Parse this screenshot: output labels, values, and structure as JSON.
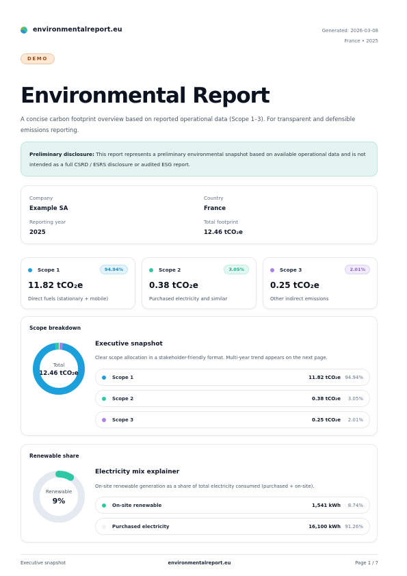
{
  "header": {
    "brand": "environmentalreport.eu",
    "generated": "Generated: 2026-03-08",
    "location_year": "France • 2025"
  },
  "badge": "DEMO",
  "title": "Environmental Report",
  "subtitle": "A concise carbon footprint overview based on reported operational data (Scope 1–3). For transparent and defensible emissions reporting.",
  "notice": {
    "label": "Preliminary disclosure:",
    "text": "This report represents a preliminary environmental snapshot based on available operational data and is not intended as a full CSRD / ESRS disclosure or audited ESG report."
  },
  "info": {
    "company_label": "Company",
    "company": "Example SA",
    "country_label": "Country",
    "country": "France",
    "year_label": "Reporting year",
    "year": "2025",
    "footprint_label": "Total footprint",
    "footprint": "12.46 tCO₂e"
  },
  "scopes": [
    {
      "name": "Scope 1",
      "pct": "94.94%",
      "value": "11.82 tCO₂e",
      "desc": "Direct fuels (stationary + mobile)",
      "color": "#1ba0dc",
      "pill_bg": "#e2f3fb",
      "pill_border": "#bfe3f4",
      "pill_color": "#168ac0"
    },
    {
      "name": "Scope 2",
      "pct": "3.05%",
      "value": "0.38 tCO₂e",
      "desc": "Purchased electricity and similar",
      "color": "#2ec9a4",
      "pill_bg": "#e3f8f2",
      "pill_border": "#bdeedf",
      "pill_color": "#1fa985"
    },
    {
      "name": "Scope 3",
      "pct": "2.01%",
      "value": "0.25 tCO₂e",
      "desc": "Other indirect emissions",
      "color": "#a97fe8",
      "pill_bg": "#f1ebfc",
      "pill_border": "#ddd0f6",
      "pill_color": "#8a5fd4"
    }
  ],
  "breakdown": {
    "section": "Scope breakdown",
    "donut_label": "Total",
    "donut_value": "12.46 tCO₂e",
    "panel_title": "Executive snapshot",
    "panel_desc": "Clear scope allocation in a stakeholder-friendly format. Multi-year trend appears on the next page.",
    "rows": [
      {
        "name": "Scope 1",
        "value": "11.82 tCO₂e",
        "pct": "94.94%",
        "share": 94.94,
        "color": "#1ba0dc"
      },
      {
        "name": "Scope 2",
        "value": "0.38 tCO₂e",
        "pct": "3.05%",
        "share": 3.05,
        "color": "#2ec9a4"
      },
      {
        "name": "Scope 3",
        "value": "0.25 tCO₂e",
        "pct": "2.01%",
        "share": 2.01,
        "color": "#a97fe8"
      }
    ]
  },
  "renewable": {
    "section": "Renewable share",
    "donut_label": "Renewable",
    "donut_value": "9%",
    "share": 8.74,
    "color": "#2ec9a4",
    "track_color": "#e5e9f0",
    "panel_title": "Electricity mix explainer",
    "panel_desc": "On-site renewable generation as a share of total electricity consumed (purchased + on-site).",
    "rows": [
      {
        "name": "On-site renewable",
        "value": "1,541 kWh",
        "pct": "8.74%",
        "color": "#2ec9a4"
      },
      {
        "name": "Purchased electricity",
        "value": "16,100 kWh",
        "pct": "91.26%",
        "color": "#eef1f5"
      }
    ]
  },
  "footer": {
    "left": "Executive snapshot",
    "center": "environmentalreport.eu",
    "right": "Page 1 / 7"
  }
}
